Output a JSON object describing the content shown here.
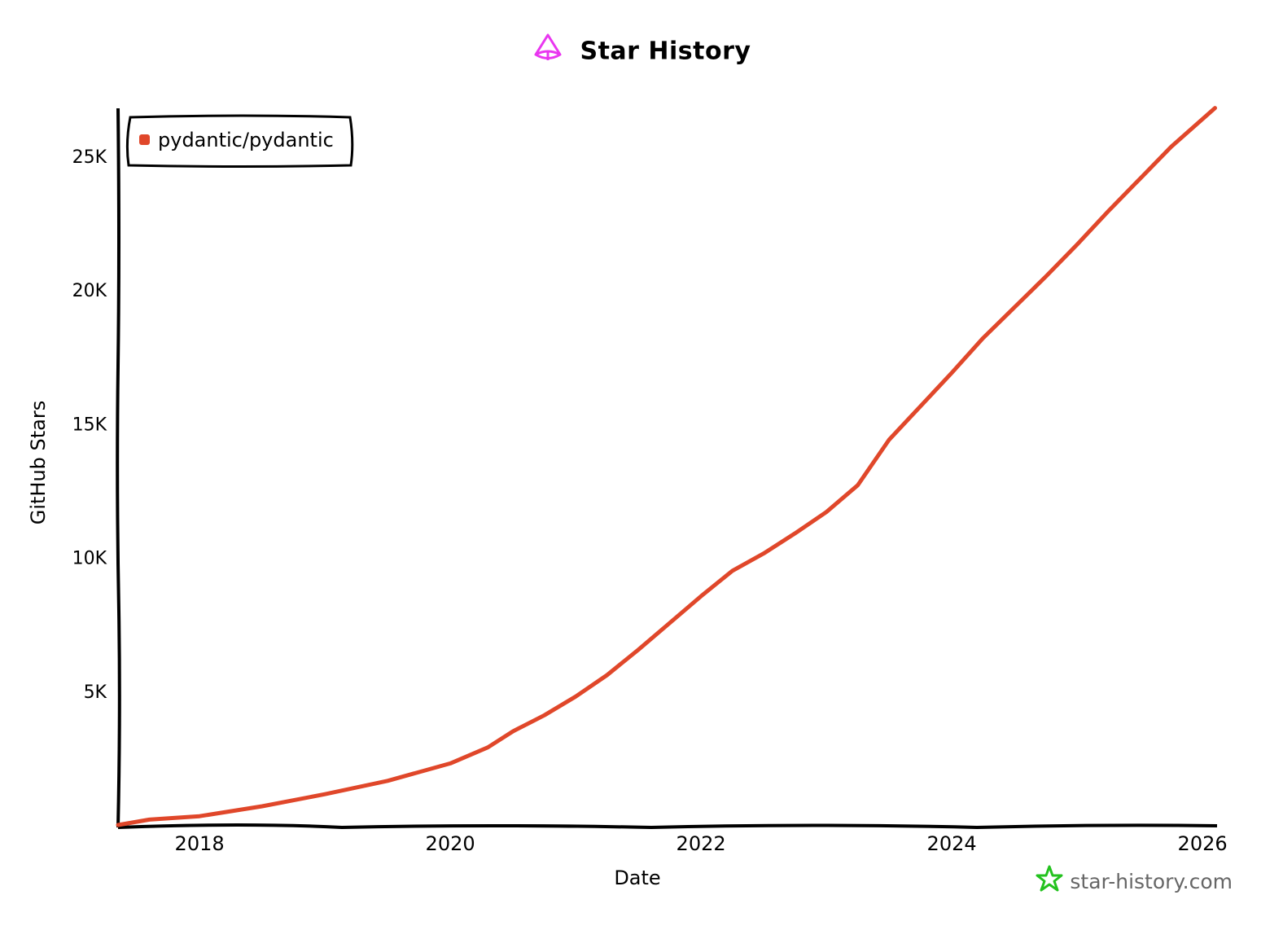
{
  "header": {
    "title": "Star History",
    "logo_icon": "pyramid-logo-icon",
    "logo_color": "#e936f0"
  },
  "watermark": {
    "text": "star-history.com",
    "icon": "star-outline-icon",
    "icon_color": "#23c21e"
  },
  "colors": {
    "series": "#e0472a",
    "axis": "#000000"
  },
  "chart_data": {
    "type": "line",
    "title": "Star History",
    "xlabel": "Date",
    "ylabel": "GitHub Stars",
    "x_ticks": [
      "2018",
      "2020",
      "2022",
      "2024",
      "2026"
    ],
    "y_ticks": [
      "5K",
      "10K",
      "15K",
      "20K",
      "25K"
    ],
    "xlim": [
      2017.35,
      2026.1
    ],
    "ylim": [
      0,
      27000
    ],
    "grid": false,
    "legend_position": "top-left",
    "series": [
      {
        "name": "pydantic/pydantic",
        "color": "#e0472a",
        "x": [
          2017.35,
          2017.6,
          2018.0,
          2018.5,
          2019.0,
          2019.5,
          2020.0,
          2020.3,
          2020.5,
          2020.75,
          2021.0,
          2021.25,
          2021.5,
          2021.75,
          2022.0,
          2022.25,
          2022.5,
          2022.75,
          2023.0,
          2023.25,
          2023.5,
          2023.75,
          2024.0,
          2024.25,
          2024.5,
          2024.75,
          2025.0,
          2025.25,
          2025.5,
          2025.75,
          2026.1
        ],
        "values": [
          0,
          200,
          330,
          700,
          1150,
          1650,
          2300,
          2900,
          3500,
          4100,
          4800,
          5600,
          6550,
          7550,
          8550,
          9500,
          10150,
          10900,
          11700,
          12700,
          14400,
          15650,
          16900,
          18200,
          19350,
          20500,
          21700,
          22950,
          24150,
          25350,
          26800
        ]
      }
    ]
  }
}
